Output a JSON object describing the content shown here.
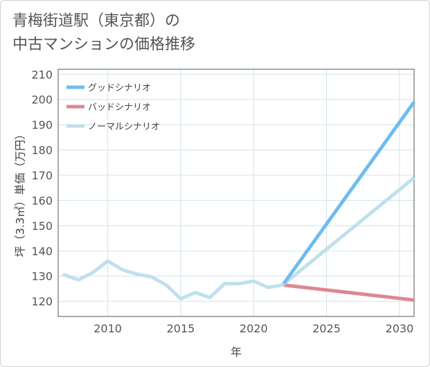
{
  "title_lines": [
    "青梅街道駅（東京都）の",
    "中古マンションの価格推移"
  ],
  "colors": {
    "good": "#6fbcee",
    "bad": "#dc8890",
    "normal": "#bfe0ec",
    "grid": "#cfe3ef",
    "axis": "#555555"
  },
  "chart_data": {
    "type": "line",
    "title": "青梅街道駅（東京都）の中古マンションの価格推移",
    "xlabel": "年",
    "ylabel": "坪（3.3㎡）単価（万円）",
    "xlim": [
      2006.6,
      2031
    ],
    "ylim": [
      114,
      212
    ],
    "xticks": [
      2010,
      2015,
      2020,
      2025,
      2030
    ],
    "yticks": [
      120,
      130,
      140,
      150,
      160,
      170,
      180,
      190,
      200,
      210
    ],
    "grid": true,
    "legend_position": "top-left",
    "historical": {
      "x": [
        2007,
        2008,
        2009,
        2010,
        2011,
        2012,
        2013,
        2014,
        2015,
        2016,
        2017,
        2018,
        2019,
        2020,
        2021,
        2022
      ],
      "y": [
        130.5,
        128.5,
        131.5,
        136,
        132.5,
        130.8,
        129.7,
        126.5,
        121,
        123.5,
        121.5,
        127,
        127,
        128,
        125.5,
        126.5
      ]
    },
    "series": [
      {
        "name": "グッドシナリオ",
        "key": "good",
        "x": [
          2022,
          2031
        ],
        "y": [
          126.5,
          199
        ]
      },
      {
        "name": "バッドシナリオ",
        "key": "bad",
        "x": [
          2022,
          2031
        ],
        "y": [
          126.5,
          120.5
        ]
      },
      {
        "name": "ノーマルシナリオ",
        "key": "normal",
        "x": [
          2022,
          2031
        ],
        "y": [
          126.5,
          169
        ]
      }
    ]
  }
}
